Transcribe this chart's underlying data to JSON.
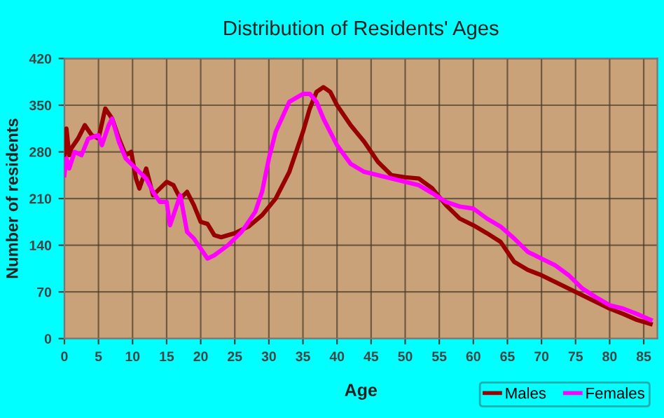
{
  "chart_data": {
    "type": "line",
    "title": "Distribution of Residents' Ages",
    "xlabel": "Age",
    "ylabel": "Number of residents",
    "xlim": [
      0,
      87
    ],
    "xticks": [
      0,
      5,
      10,
      15,
      20,
      25,
      30,
      35,
      40,
      45,
      50,
      55,
      60,
      65,
      70,
      75,
      80,
      85
    ],
    "ylim": [
      0,
      420
    ],
    "yticks": [
      0,
      70,
      140,
      210,
      280,
      350,
      420
    ],
    "grid": true,
    "legend": "bottom right",
    "marker": "none",
    "line_style": "solid",
    "series": [
      {
        "name": "Males",
        "color": "#990000",
        "x": [
          0,
          0.3,
          0.7,
          1,
          2,
          3,
          4,
          5,
          6,
          7,
          8,
          9,
          9.8,
          10.5,
          11,
          12,
          12.5,
          13,
          14,
          15,
          16,
          17,
          18,
          19,
          20,
          21,
          22,
          23,
          25,
          27,
          29,
          31,
          33,
          35,
          36,
          37,
          38,
          39,
          40,
          42,
          44,
          46,
          48,
          50,
          52,
          54,
          56,
          58,
          60,
          62,
          64,
          66,
          68,
          70,
          72,
          74,
          76,
          78,
          80,
          82,
          84,
          86
        ],
        "values": [
          270,
          315,
          275,
          285,
          300,
          320,
          305,
          300,
          345,
          330,
          300,
          275,
          280,
          240,
          225,
          255,
          235,
          215,
          225,
          235,
          230,
          210,
          220,
          200,
          175,
          172,
          155,
          152,
          158,
          168,
          185,
          210,
          250,
          310,
          345,
          370,
          377,
          370,
          350,
          320,
          295,
          265,
          245,
          242,
          240,
          225,
          200,
          180,
          170,
          158,
          145,
          115,
          103,
          95,
          85,
          75,
          65,
          55,
          45,
          37,
          28,
          22
        ]
      },
      {
        "name": "Females",
        "color": "#ff00ff",
        "x": [
          0,
          0.3,
          0.7,
          1.5,
          2.5,
          3.5,
          5,
          5.5,
          6.5,
          7,
          8,
          9,
          10,
          11,
          12,
          13,
          14,
          15,
          15.5,
          16,
          17,
          18,
          19,
          20,
          21,
          22,
          24,
          26,
          28,
          29,
          30,
          31,
          33,
          35,
          36,
          37,
          38,
          40,
          42,
          44,
          46,
          48,
          50,
          52,
          54,
          56,
          58,
          60,
          62,
          64,
          66,
          68,
          70,
          72,
          74,
          76,
          78,
          80,
          82,
          84,
          86
        ],
        "values": [
          245,
          270,
          255,
          280,
          275,
          300,
          305,
          290,
          320,
          330,
          295,
          270,
          260,
          250,
          240,
          220,
          205,
          205,
          170,
          185,
          215,
          160,
          150,
          135,
          120,
          125,
          140,
          160,
          190,
          220,
          270,
          310,
          355,
          367,
          367,
          355,
          330,
          290,
          262,
          250,
          245,
          240,
          235,
          230,
          218,
          205,
          198,
          195,
          180,
          168,
          150,
          130,
          120,
          110,
          95,
          75,
          62,
          50,
          45,
          37,
          28
        ]
      }
    ]
  }
}
